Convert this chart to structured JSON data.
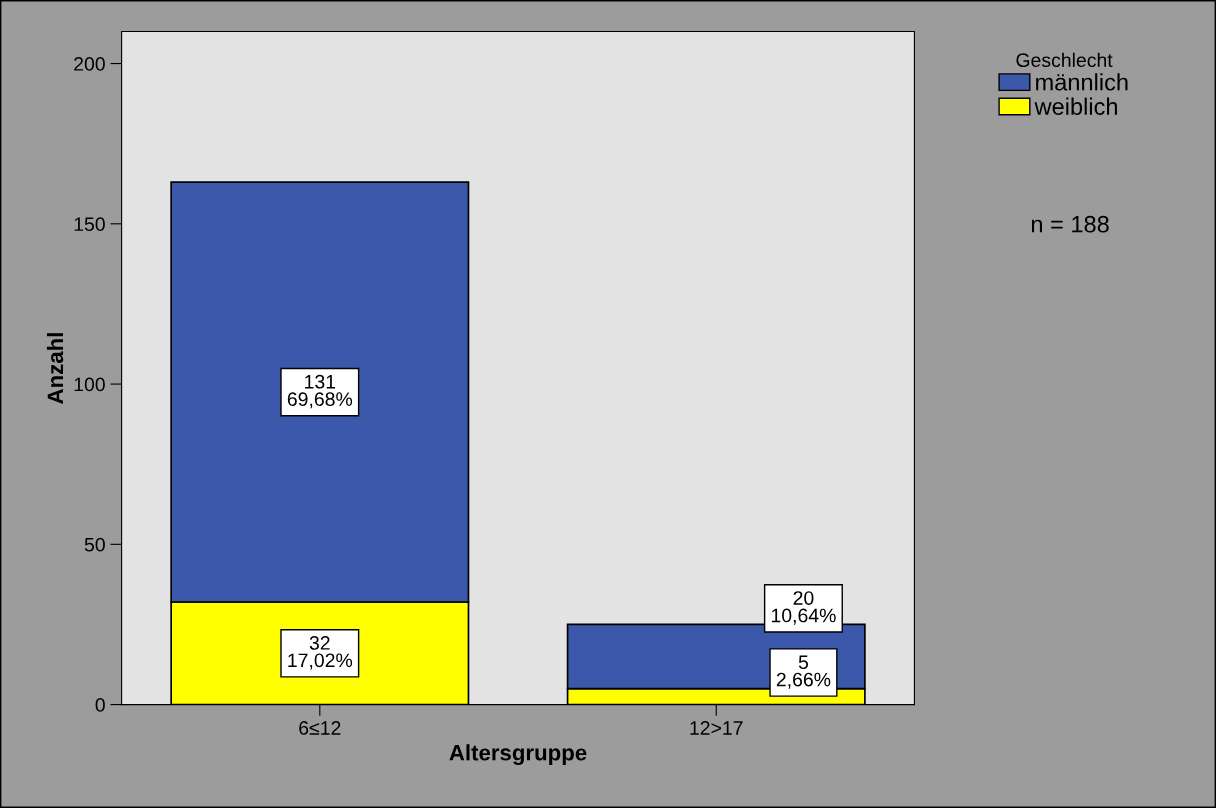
{
  "chart_data": {
    "type": "bar",
    "stacked": true,
    "xlabel": "Altersgruppe",
    "ylabel": "Anzahl",
    "legend_title": "Geschlecht",
    "legend": "top right",
    "categories": [
      "6≤12",
      "12>17"
    ],
    "series": [
      {
        "name": "weiblich",
        "color": "#ffff00",
        "values": [
          32,
          5
        ],
        "value_labels": [
          "32\n17,02%",
          "5\n2,66%"
        ]
      },
      {
        "name": "männlich",
        "color": "#3c58ab",
        "values": [
          131,
          20
        ],
        "value_labels": [
          "131\n69,68%",
          "20\n10,64%"
        ]
      }
    ],
    "ylim": [
      0,
      210
    ],
    "yticks": [
      0,
      50,
      100,
      150,
      200
    ],
    "grid": false,
    "annotations": [
      "n = 188"
    ]
  }
}
